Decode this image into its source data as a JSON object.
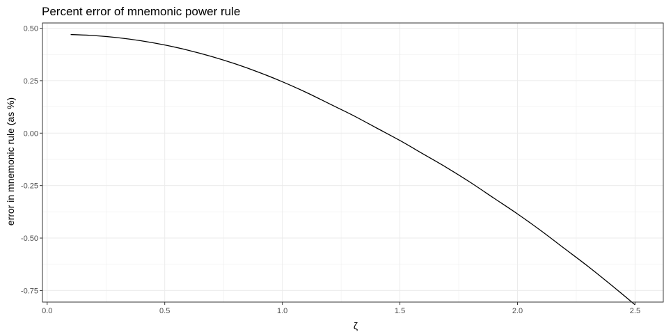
{
  "chart_data": {
    "type": "line",
    "title": "Percent error of mnemonic power rule",
    "xlabel": "ζ",
    "ylabel": "error in mnemonic rule (as %)",
    "xlim": [
      -0.02,
      2.62
    ],
    "ylim": [
      -0.805,
      0.525
    ],
    "x_ticks": [
      0.0,
      0.5,
      1.0,
      1.5,
      2.0,
      2.5
    ],
    "x_tick_labels": [
      "0.0",
      "0.5",
      "1.0",
      "1.5",
      "2.0",
      "2.5"
    ],
    "y_ticks": [
      0.5,
      0.25,
      0.0,
      -0.25,
      -0.5,
      -0.75
    ],
    "y_tick_labels": [
      "0.50",
      "0.25",
      "0.00",
      "-0.25",
      "-0.50",
      "-0.75"
    ],
    "grid": true,
    "legend": "none",
    "colors": {
      "line": "#000000",
      "grid": "#ebebeb",
      "panel_border": "#333333",
      "tick_text": "#4d4d4d"
    },
    "series": [
      {
        "x": [
          0.1,
          0.2,
          0.3,
          0.4,
          0.5,
          0.6,
          0.7,
          0.8,
          0.9,
          1.0,
          1.1,
          1.2,
          1.3,
          1.4,
          1.5,
          1.6,
          1.7,
          1.8,
          1.9,
          2.0,
          2.1,
          2.2,
          2.3,
          2.4,
          2.5
        ],
        "y": [
          0.47,
          0.465,
          0.455,
          0.44,
          0.42,
          0.395,
          0.365,
          0.33,
          0.29,
          0.245,
          0.195,
          0.14,
          0.085,
          0.025,
          -0.035,
          -0.1,
          -0.165,
          -0.235,
          -0.31,
          -0.385,
          -0.465,
          -0.55,
          -0.635,
          -0.725,
          -0.818
        ]
      }
    ]
  }
}
